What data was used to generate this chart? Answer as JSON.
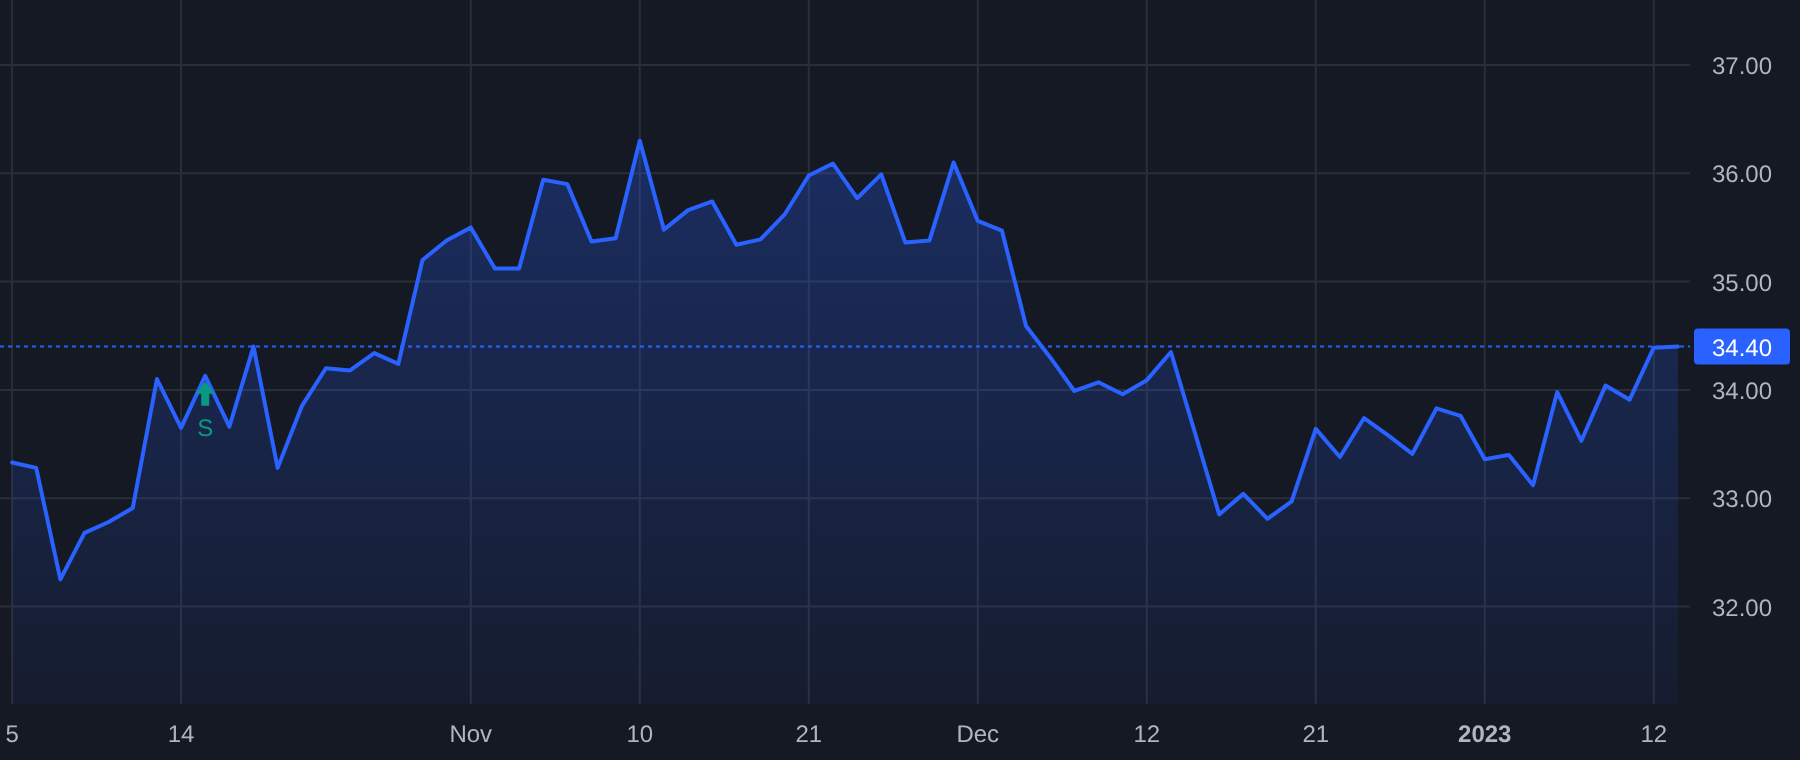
{
  "chart_data": {
    "type": "area",
    "categories": [
      "5",
      null,
      null,
      null,
      null,
      null,
      null,
      "14",
      null,
      null,
      null,
      null,
      null,
      null,
      null,
      null,
      null,
      null,
      null,
      "Nov",
      null,
      null,
      null,
      null,
      null,
      null,
      "10",
      null,
      null,
      null,
      null,
      null,
      null,
      "21",
      null,
      null,
      null,
      null,
      null,
      null,
      "Dec",
      null,
      null,
      null,
      null,
      null,
      null,
      "12",
      null,
      null,
      null,
      null,
      null,
      null,
      "21",
      null,
      null,
      null,
      null,
      null,
      null,
      "2023",
      null,
      null,
      null,
      null,
      null,
      null,
      "12",
      null
    ],
    "series": [
      {
        "color": "#2962ff",
        "values": [
          33.33,
          33.28,
          32.25,
          32.68,
          32.78,
          32.91,
          34.1,
          33.65,
          34.13,
          33.66,
          34.4,
          33.28,
          33.85,
          34.2,
          34.18,
          34.34,
          34.24,
          35.2,
          35.38,
          35.5,
          35.12,
          35.12,
          35.94,
          35.9,
          35.37,
          35.4,
          36.3,
          35.48,
          35.66,
          35.74,
          35.34,
          35.39,
          35.62,
          35.98,
          36.09,
          35.77,
          35.99,
          35.36,
          35.38,
          36.1,
          35.56,
          35.47,
          34.59,
          34.3,
          33.99,
          34.07,
          33.96,
          34.09,
          34.35,
          33.6,
          32.85,
          33.04,
          32.81,
          32.97,
          33.64,
          33.38,
          33.74,
          33.58,
          33.41,
          33.83,
          33.76,
          33.36,
          33.4,
          33.12,
          33.98,
          33.53,
          34.04,
          33.91,
          34.39,
          34.4
        ]
      }
    ],
    "ylim": [
      31.1,
      37.6
    ],
    "yticks": [
      {
        "value": 32,
        "label": "32.00"
      },
      {
        "value": 33,
        "label": "33.00"
      },
      {
        "value": 34,
        "label": "34.00"
      },
      {
        "value": 35,
        "label": "35.00"
      },
      {
        "value": 36,
        "label": "36.00"
      },
      {
        "value": 37,
        "label": "37.00"
      }
    ],
    "grid": true,
    "marker": "none",
    "line_style": "solid",
    "ref_lines": [
      {
        "axis": "y",
        "value": 34.4,
        "label": "34.40",
        "color": "#2962ff",
        "line_style": "dotted"
      }
    ],
    "annotations": [
      {
        "text": "S",
        "y": 34.13
      }
    ]
  }
}
